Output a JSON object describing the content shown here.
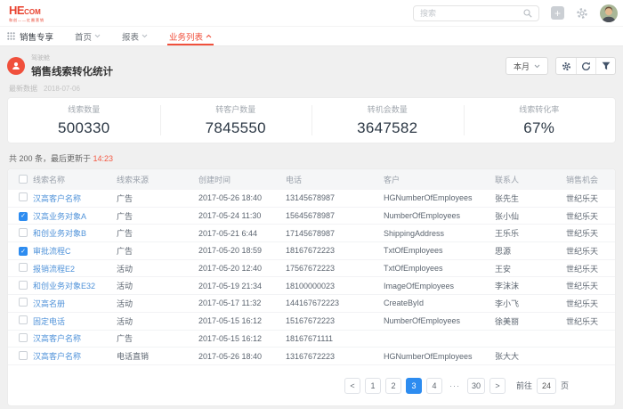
{
  "theme": {
    "brand_red": "#e8402d",
    "active_red": "#f0503c",
    "link_blue": "#4f92d9",
    "primary_blue": "#2d8cf0",
    "time_red": "#f35a44"
  },
  "header": {
    "logo": {
      "main": "HE",
      "sub": "COM",
      "tagline": "和创——红圈营销"
    },
    "search": {
      "placeholder": "搜索"
    },
    "icons": [
      "plus-icon",
      "gear-icon",
      "avatar"
    ]
  },
  "nav": {
    "workspace": "销售专享",
    "items": [
      {
        "label": "首页",
        "caret": "down",
        "active": false
      },
      {
        "label": "报表",
        "caret": "down",
        "active": false
      },
      {
        "label": "业务列表",
        "caret": "up",
        "active": true
      }
    ]
  },
  "page": {
    "category": "驾驶舱",
    "title": "销售线索转化统计",
    "period_button": "本月",
    "latest_label": "最新数据",
    "latest_date": "2018-07-06",
    "toolbar_icons": [
      "gear-icon",
      "refresh-icon",
      "filter-icon"
    ]
  },
  "stats": [
    {
      "label": "线索数量",
      "value": "500330"
    },
    {
      "label": "转客户数量",
      "value": "7845550"
    },
    {
      "label": "转机会数量",
      "value": "3647582"
    },
    {
      "label": "线索转化率",
      "value": "67%"
    }
  ],
  "table": {
    "summary_prefix": "共 200 条，最后更新于 ",
    "summary_time": "14:23",
    "columns": [
      "线索名称",
      "线索来源",
      "创建时间",
      "电话",
      "客户",
      "联系人",
      "销售机会"
    ],
    "rows": [
      {
        "checked": false,
        "name": "汉高客户名称",
        "source": "广告",
        "created": "2017-05-26 18:40",
        "phone": "13145678987",
        "customer": "HGNumberOfEmployees",
        "contact": "张先生",
        "opportunity": "世纪乐天"
      },
      {
        "checked": true,
        "name": "汉高业务对象A",
        "source": "广告",
        "created": "2017-05-24 11:30",
        "phone": "15645678987",
        "customer": "NumberOfEmployees",
        "contact": "张小仙",
        "opportunity": "世纪乐天"
      },
      {
        "checked": false,
        "name": "和创业务对象B",
        "source": "广告",
        "created": "2017-05-21 6:44",
        "phone": "17145678987",
        "customer": "ShippingAddress",
        "contact": "王乐乐",
        "opportunity": "世纪乐天"
      },
      {
        "checked": true,
        "name": "审批流程C",
        "source": "广告",
        "created": "2017-05-20 18:59",
        "phone": "18167672223",
        "customer": "TxtOfEmployees",
        "contact": "思源",
        "opportunity": "世纪乐天"
      },
      {
        "checked": false,
        "name": "报销流程E2",
        "source": "活动",
        "created": "2017-05-20 12:40",
        "phone": "17567672223",
        "customer": "TxtOfEmployees",
        "contact": "王安",
        "opportunity": "世纪乐天"
      },
      {
        "checked": false,
        "name": "和创业务对象E32",
        "source": "活动",
        "created": "2017-05-19 21:34",
        "phone": "18100000023",
        "customer": "ImageOfEmployees",
        "contact": "李沫沫",
        "opportunity": "世纪乐天"
      },
      {
        "checked": false,
        "name": "汉高名册",
        "source": "活动",
        "created": "2017-05-17 11:32",
        "phone": "144167672223",
        "customer": "CreateById",
        "contact": "李小飞",
        "opportunity": "世纪乐天"
      },
      {
        "checked": false,
        "name": "固定电话",
        "source": "活动",
        "created": "2017-05-15 16:12",
        "phone": "15167672223",
        "customer": "NumberOfEmployees",
        "contact": "徐美丽",
        "opportunity": "世纪乐天"
      },
      {
        "checked": false,
        "name": "汉高客户名称",
        "source": "广告",
        "created": "2017-05-15 16:12",
        "phone": "18167671111",
        "customer": "",
        "contact": "",
        "opportunity": ""
      },
      {
        "checked": false,
        "name": "汉高客户名称",
        "source": "电话直销",
        "created": "2017-05-26 18:40",
        "phone": "13167672223",
        "customer": "HGNumberOfEmployees",
        "contact": "张大大",
        "opportunity": ""
      }
    ]
  },
  "pagination": {
    "prev": "<",
    "next": ">",
    "pages": [
      "1",
      "2",
      "3",
      "4",
      "···",
      "30"
    ],
    "active": "3",
    "goto_label": "前往",
    "goto_value": "24",
    "unit_label": "页"
  }
}
